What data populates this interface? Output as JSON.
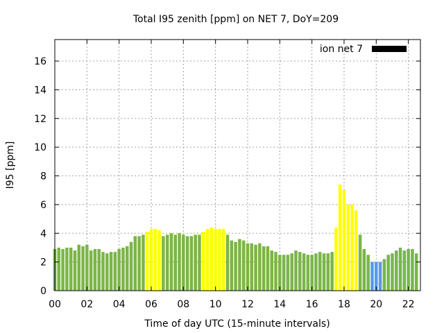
{
  "chart_data": {
    "type": "bar",
    "title": "Total I95 zenith [ppm] on NET 7, DoY=209",
    "xlabel": "Time of day UTC (15-minute intervals)",
    "ylabel": "I95 [ppm]",
    "xlim": [
      0,
      22.75
    ],
    "ylim": [
      0,
      17.5
    ],
    "x_ticks": [
      "00",
      "02",
      "04",
      "06",
      "08",
      "10",
      "12",
      "14",
      "16",
      "18",
      "20",
      "22"
    ],
    "y_ticks": [
      "0",
      "2",
      "4",
      "6",
      "8",
      "10",
      "12",
      "14",
      "16"
    ],
    "grid": true,
    "legend": {
      "position": "top-right",
      "label": "ion net 7",
      "color": "#000000"
    },
    "interval_hours": 0.25,
    "colors": {
      "green": "#7ab648",
      "yellow": "#ffff00",
      "blue": "#5599ee"
    },
    "values": [
      2.9,
      3.0,
      2.9,
      3.0,
      3.0,
      2.8,
      3.2,
      3.1,
      3.2,
      2.8,
      2.9,
      2.9,
      2.7,
      2.6,
      2.7,
      2.7,
      2.9,
      3.0,
      3.1,
      3.4,
      3.8,
      3.8,
      3.9,
      4.1,
      4.3,
      4.3,
      4.2,
      3.8,
      3.9,
      4.0,
      3.9,
      4.0,
      3.9,
      3.8,
      3.8,
      3.9,
      3.9,
      4.1,
      4.3,
      4.4,
      4.3,
      4.3,
      4.3,
      3.9,
      3.5,
      3.4,
      3.6,
      3.5,
      3.3,
      3.3,
      3.2,
      3.3,
      3.1,
      3.1,
      2.8,
      2.7,
      2.5,
      2.5,
      2.5,
      2.6,
      2.8,
      2.7,
      2.6,
      2.5,
      2.5,
      2.6,
      2.7,
      2.6,
      2.6,
      2.7,
      4.4,
      7.4,
      7.0,
      6.0,
      6.0,
      5.6,
      3.9,
      2.9,
      2.5,
      2.0,
      2.0,
      2.0,
      2.2,
      2.5,
      2.6,
      2.8,
      3.0,
      2.8,
      2.9,
      2.9,
      2.6
    ],
    "bar_colors": [
      "green",
      "green",
      "green",
      "green",
      "green",
      "green",
      "green",
      "green",
      "green",
      "green",
      "green",
      "green",
      "green",
      "green",
      "green",
      "green",
      "green",
      "green",
      "green",
      "green",
      "green",
      "green",
      "green",
      "yellow",
      "yellow",
      "yellow",
      "yellow",
      "green",
      "green",
      "green",
      "green",
      "green",
      "green",
      "green",
      "green",
      "green",
      "green",
      "yellow",
      "yellow",
      "yellow",
      "yellow",
      "yellow",
      "yellow",
      "green",
      "green",
      "green",
      "green",
      "green",
      "green",
      "green",
      "green",
      "green",
      "green",
      "green",
      "green",
      "green",
      "green",
      "green",
      "green",
      "green",
      "green",
      "green",
      "green",
      "green",
      "green",
      "green",
      "green",
      "green",
      "green",
      "green",
      "yellow",
      "yellow",
      "yellow",
      "yellow",
      "yellow",
      "yellow",
      "green",
      "green",
      "green",
      "blue",
      "blue",
      "blue",
      "green",
      "green",
      "green",
      "green",
      "green",
      "green",
      "green",
      "green",
      "green"
    ]
  }
}
